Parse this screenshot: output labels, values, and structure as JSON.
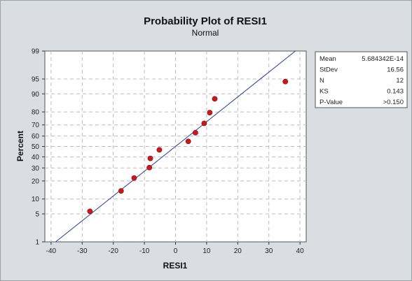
{
  "chart_data": {
    "type": "scatter",
    "title": "Probability Plot of RESI1",
    "subtitle": "Normal",
    "xlabel": "RESI1",
    "ylabel": "Percent",
    "xlim": [
      -42,
      42
    ],
    "x_ticks": [
      -40,
      -30,
      -20,
      -10,
      0,
      10,
      20,
      30,
      40
    ],
    "y_ticks": [
      1,
      5,
      10,
      20,
      30,
      40,
      50,
      60,
      70,
      80,
      90,
      95,
      99
    ],
    "y_scale": "normal-probability",
    "grid": true,
    "fit_line": {
      "mean": 0,
      "stdev": 16.56
    },
    "points": [
      {
        "x": -27.5,
        "y": 5.7
      },
      {
        "x": -17.5,
        "y": 13.9
      },
      {
        "x": -13.3,
        "y": 22.1
      },
      {
        "x": -8.4,
        "y": 30.3
      },
      {
        "x": -8.1,
        "y": 38.5
      },
      {
        "x": -5.2,
        "y": 46.7
      },
      {
        "x": 4.1,
        "y": 54.9
      },
      {
        "x": 6.4,
        "y": 63.1
      },
      {
        "x": 9.2,
        "y": 71.3
      },
      {
        "x": 11.0,
        "y": 79.5
      },
      {
        "x": 12.6,
        "y": 87.7
      },
      {
        "x": 35.3,
        "y": 94.3
      }
    ],
    "point_color": "#c8191e",
    "line_color": "#2b3a8c",
    "legend_position": "right",
    "stats": [
      {
        "label": "Mean",
        "value": "5.684342E-14"
      },
      {
        "label": "StDev",
        "value": "16.56"
      },
      {
        "label": "N",
        "value": "12"
      },
      {
        "label": "KS",
        "value": "0.143"
      },
      {
        "label": "P-Value",
        "value": ">0.150"
      }
    ]
  }
}
